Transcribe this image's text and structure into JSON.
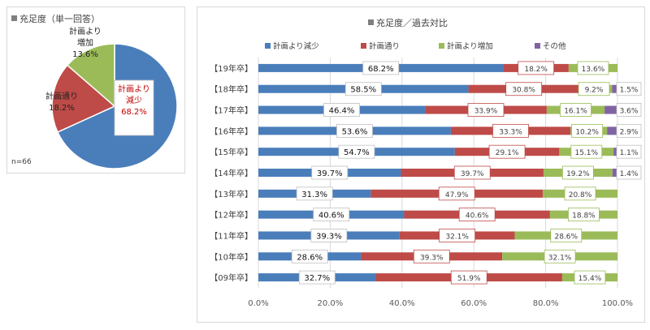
{
  "pie_panel": {
    "title": "充足度（単一回答）",
    "title_marker_color": "#7f7f7f",
    "n_label": "n=66"
  },
  "bar_panel": {
    "title": "充足度／過去対比",
    "title_marker_color": "#7f7f7f"
  },
  "chart_data": [
    {
      "type": "pie",
      "title": "充足度（単一回答）",
      "slices": [
        {
          "label": "計画より減少",
          "label_lines": [
            "計画より",
            "減少"
          ],
          "value": 68.2,
          "value_label": "68.2%",
          "color": "#4a7ebb",
          "label_color": "#c00000"
        },
        {
          "label": "計画通り",
          "label_lines": [
            "計画通り"
          ],
          "value": 18.2,
          "value_label": "18.2%",
          "color": "#be4b48",
          "label_color": "#222222"
        },
        {
          "label": "計画より増加",
          "label_lines": [
            "計画より",
            "増加"
          ],
          "value": 13.6,
          "value_label": "13.6%",
          "color": "#9bbb59",
          "label_color": "#222222"
        }
      ]
    },
    {
      "type": "bar",
      "orientation": "horizontal",
      "stacked": true,
      "title": "充足度／過去対比",
      "categories": [
        "【19年卒】",
        "【18年卒】",
        "【17年卒】",
        "【16年卒】",
        "【15年卒】",
        "【14年卒】",
        "【13年卒】",
        "【12年卒】",
        "【11年卒】",
        "【10年卒】",
        "【09年卒】"
      ],
      "series": [
        {
          "name": "計画より減少",
          "color": "#4a7ebb",
          "values": [
            68.2,
            58.5,
            46.4,
            53.6,
            54.7,
            39.7,
            31.3,
            40.6,
            39.3,
            28.6,
            32.7
          ],
          "labels": [
            "68.2%",
            "58.5%",
            "46.4%",
            "53.6%",
            "54.7%",
            "39.7%",
            "31.3%",
            "40.6%",
            "39.3%",
            "28.6%",
            "32.7%"
          ]
        },
        {
          "name": "計画通り",
          "color": "#be4b48",
          "values": [
            18.2,
            30.8,
            33.9,
            33.3,
            29.1,
            39.7,
            47.9,
            40.6,
            32.1,
            39.3,
            51.9
          ],
          "labels": [
            "18.2%",
            "30.8%",
            "33.9%",
            "33.3%",
            "29.1%",
            "39.7%",
            "47.9%",
            "40.6%",
            "32.1%",
            "39.3%",
            "51.9%"
          ]
        },
        {
          "name": "計画より増加",
          "color": "#9bbb59",
          "values": [
            13.6,
            9.2,
            16.1,
            10.2,
            15.1,
            19.2,
            20.8,
            18.8,
            28.6,
            32.1,
            15.4
          ],
          "labels": [
            "13.6%",
            "9.2%",
            "16.1%",
            "10.2%",
            "15.1%",
            "19.2%",
            "20.8%",
            "18.8%",
            "28.6%",
            "32.1%",
            "15.4%"
          ]
        },
        {
          "name": "その他",
          "color": "#8064a2",
          "values": [
            0,
            1.5,
            3.6,
            2.9,
            1.1,
            1.4,
            0,
            0,
            0,
            0,
            0
          ],
          "labels": [
            "",
            "1.5%",
            "3.6%",
            "2.9%",
            "1.1%",
            "1.4%",
            "",
            "",
            "",
            "",
            ""
          ]
        }
      ],
      "xlim": [
        0,
        100
      ],
      "xticks": [
        "0.0%",
        "20.0%",
        "40.0%",
        "60.0%",
        "80.0%",
        "100.0%"
      ],
      "grid": true,
      "legend_position": "top"
    }
  ]
}
